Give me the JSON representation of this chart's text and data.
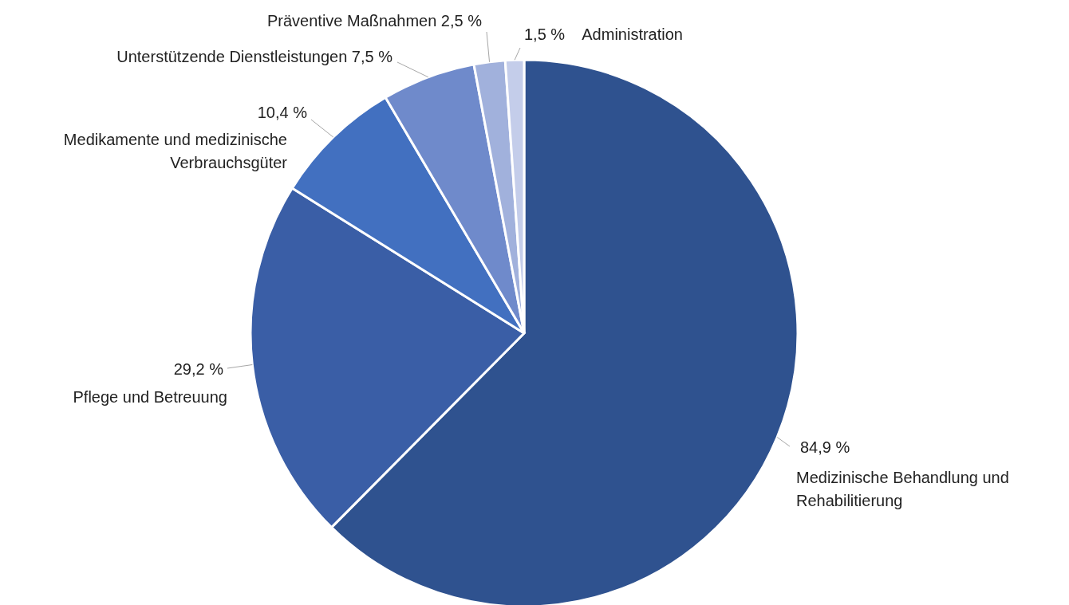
{
  "chart_data": {
    "type": "pie",
    "categories": [
      "Medizinische Behandlung und Rehabilitierung",
      "Pflege und Betreuung",
      "Medikamente und medizinische Verbrauchsgüter",
      "Unterstützende Dienstleistungen",
      "Präventive Maßnahmen",
      "Administration"
    ],
    "values": [
      84.9,
      29.2,
      10.4,
      7.5,
      2.5,
      1.5
    ],
    "value_labels": [
      "84,9 %",
      "29,2 %",
      "10,4 %",
      "7,5 %",
      "2,5 %",
      "1,5 %"
    ],
    "colors": [
      "#2f528f",
      "#3a5ea6",
      "#4270c0",
      "#6f8acb",
      "#a1b1dc",
      "#c4cdea"
    ],
    "legend": false
  }
}
